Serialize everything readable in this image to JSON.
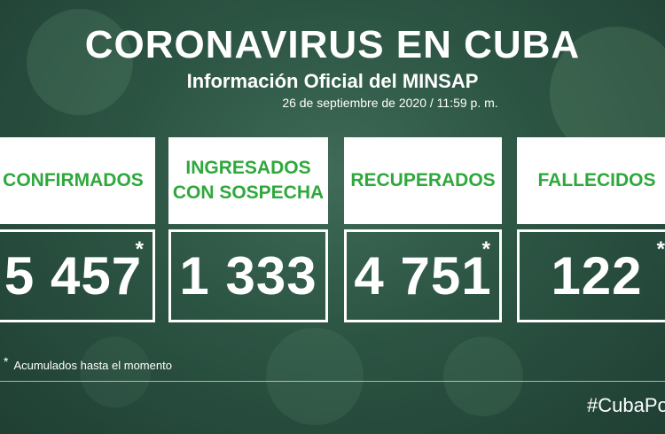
{
  "header": {
    "title": "CORONAVIRUS EN CUBA",
    "subtitle": "Información Oficial del MINSAP",
    "date": "26 de septiembre de 2020 / 11:59 p. m."
  },
  "stats": [
    {
      "label": "CONFIRMADOS",
      "value": "5 457",
      "asterisk": "*"
    },
    {
      "label_line1": "INGRESADOS",
      "label_line2": "CON SOSPECHA",
      "value": "1 333"
    },
    {
      "label": "RECUPERADOS",
      "value": "4 751",
      "asterisk": "*"
    },
    {
      "label": "FALLECIDOS",
      "value": "122",
      "asterisk": "*"
    }
  ],
  "footnote": {
    "marker": "*",
    "text": "Acumulados hasta el momento"
  },
  "hashtag": "#CubaPor",
  "colors": {
    "label_green": "#2fa83c",
    "background": "#2c5443",
    "text": "#ffffff"
  }
}
